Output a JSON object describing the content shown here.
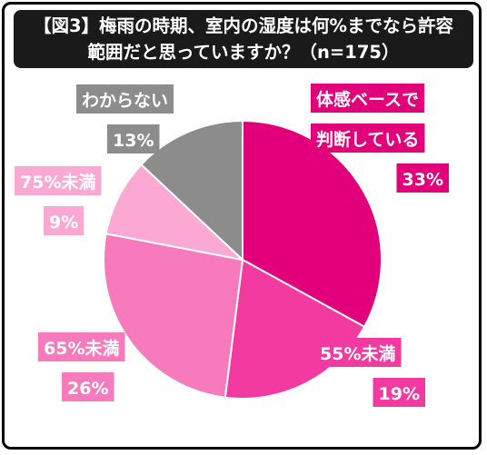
{
  "title": {
    "line1": "【図3】梅雨の時期、室内の湿度は何%までなら許容",
    "line2": "範囲だと思っていますか？（n=175）"
  },
  "colors": {
    "background": "#ffffff",
    "title_bg": "#1a1a1a",
    "border": "#000000"
  },
  "chart_data": {
    "type": "pie",
    "start_angle_deg": 0,
    "direction": "clockwise",
    "slices": [
      {
        "label_lines": [
          "体感ベースで",
          "判断している"
        ],
        "value": 33,
        "value_label": "33%",
        "color": "#e2007a"
      },
      {
        "label_lines": [
          "55%未満"
        ],
        "value": 19,
        "value_label": "19%",
        "color": "#f23aa0"
      },
      {
        "label_lines": [
          "65%未満"
        ],
        "value": 26,
        "value_label": "26%",
        "color": "#f77abd"
      },
      {
        "label_lines": [
          "75%未満"
        ],
        "value": 9,
        "value_label": "9%",
        "color": "#fba9d3"
      },
      {
        "label_lines": [
          "わからない"
        ],
        "value": 13,
        "value_label": "13%",
        "color": "#8c8c8c"
      }
    ]
  }
}
